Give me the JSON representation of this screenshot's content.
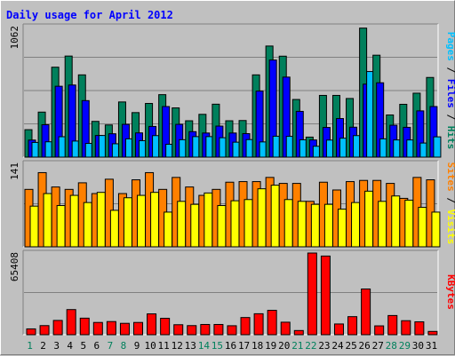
{
  "title": "Daily usage for April 2012",
  "colors": {
    "background": "#c0c0c0",
    "title": "#0000ff",
    "hits": "#00805c",
    "files": "#0000ff",
    "pages": "#00c0ff",
    "visits": "#ffff00",
    "sites": "#ff8000",
    "kbytes": "#ff0000",
    "weekend_day": "#00805c",
    "weekday": "#000000"
  },
  "chart_data": [
    {
      "type": "bar",
      "panel": "hits-files-pages",
      "scale_label": "1062",
      "ylim": [
        0,
        1062
      ],
      "grid": true,
      "legend": [
        "Pages",
        "Files",
        "Hits"
      ],
      "categories": [
        "1",
        "2",
        "3",
        "4",
        "5",
        "6",
        "7",
        "8",
        "9",
        "10",
        "11",
        "12",
        "13",
        "14",
        "15",
        "16",
        "17",
        "18",
        "19",
        "20",
        "21",
        "22",
        "23",
        "24",
        "25",
        "26",
        "27",
        "28",
        "29",
        "30",
        "31"
      ],
      "series": [
        {
          "name": "Hits",
          "values": [
            222,
            364,
            727,
            817,
            665,
            289,
            260,
            446,
            360,
            434,
            505,
            398,
            294,
            346,
            428,
            294,
            296,
            665,
            898,
            816,
            466,
            162,
            499,
            499,
            474,
            1043,
            824,
            341,
            427,
            517,
            644
          ]
        },
        {
          "name": "Files",
          "values": [
            138,
            262,
            573,
            583,
            457,
            175,
            189,
            265,
            196,
            248,
            409,
            265,
            206,
            195,
            251,
            195,
            190,
            534,
            785,
            647,
            370,
            139,
            240,
            312,
            242,
            590,
            601,
            258,
            241,
            374,
            409
          ]
        },
        {
          "name": "Pages",
          "values": [
            119,
            124,
            165,
            130,
            111,
            175,
            108,
            148,
            133,
            174,
            104,
            141,
            166,
            166,
            157,
            121,
            142,
            123,
            169,
            168,
            140,
            88,
            138,
            153,
            174,
            692,
            148,
            139,
            139,
            114,
            164
          ]
        }
      ]
    },
    {
      "type": "bar",
      "panel": "visits-sites",
      "scale_label": "141",
      "ylim": [
        0,
        141
      ],
      "grid": true,
      "legend": [
        "Sites",
        "Visits"
      ],
      "categories": [
        "1",
        "2",
        "3",
        "4",
        "5",
        "6",
        "7",
        "8",
        "9",
        "10",
        "11",
        "12",
        "13",
        "14",
        "15",
        "16",
        "17",
        "18",
        "19",
        "20",
        "21",
        "22",
        "23",
        "24",
        "25",
        "26",
        "27",
        "28",
        "29",
        "30",
        "31"
      ],
      "series": [
        {
          "name": "Visits",
          "values": [
            68,
            89,
            69,
            86,
            74,
            91,
            61,
            82,
            86,
            91,
            58,
            76,
            71,
            90,
            69,
            77,
            79,
            97,
            103,
            79,
            76,
            71,
            71,
            63,
            74,
            93,
            76,
            85,
            78,
            66,
            58
          ]
        },
        {
          "name": "Sites",
          "values": [
            96,
            124,
            100,
            96,
            107,
            89,
            113,
            89,
            112,
            124,
            96,
            116,
            100,
            86,
            96,
            108,
            109,
            109,
            116,
            106,
            106,
            76,
            108,
            95,
            109,
            111,
            111,
            106,
            81,
            116,
            112
          ]
        }
      ]
    },
    {
      "type": "bar",
      "panel": "kbytes",
      "scale_label": "65408",
      "ylim": [
        0,
        65408
      ],
      "grid": true,
      "legend": [
        "KBytes"
      ],
      "categories": [
        "1",
        "2",
        "3",
        "4",
        "5",
        "6",
        "7",
        "8",
        "9",
        "10",
        "11",
        "12",
        "13",
        "14",
        "15",
        "16",
        "17",
        "18",
        "19",
        "20",
        "21",
        "22",
        "23",
        "24",
        "25",
        "26",
        "27",
        "28",
        "29",
        "30",
        "31"
      ],
      "series": [
        {
          "name": "KBytes",
          "values": [
            4600,
            7200,
            11300,
            19900,
            13100,
            9700,
            10400,
            9000,
            9700,
            16500,
            13000,
            7900,
            7200,
            8100,
            8100,
            7100,
            13600,
            16600,
            19300,
            9900,
            3300,
            64700,
            62300,
            8500,
            14300,
            36200,
            7000,
            15200,
            11100,
            10200,
            2600
          ]
        }
      ]
    }
  ],
  "x_labels": [
    {
      "label": "1",
      "weekend": true
    },
    {
      "label": "2",
      "weekend": false
    },
    {
      "label": "3",
      "weekend": false
    },
    {
      "label": "4",
      "weekend": false
    },
    {
      "label": "5",
      "weekend": false
    },
    {
      "label": "6",
      "weekend": false
    },
    {
      "label": "7",
      "weekend": true
    },
    {
      "label": "8",
      "weekend": true
    },
    {
      "label": "9",
      "weekend": false
    },
    {
      "label": "10",
      "weekend": false
    },
    {
      "label": "11",
      "weekend": false
    },
    {
      "label": "12",
      "weekend": false
    },
    {
      "label": "13",
      "weekend": false
    },
    {
      "label": "14",
      "weekend": true
    },
    {
      "label": "15",
      "weekend": true
    },
    {
      "label": "16",
      "weekend": false
    },
    {
      "label": "17",
      "weekend": false
    },
    {
      "label": "18",
      "weekend": false
    },
    {
      "label": "19",
      "weekend": false
    },
    {
      "label": "20",
      "weekend": false
    },
    {
      "label": "21",
      "weekend": true
    },
    {
      "label": "22",
      "weekend": true
    },
    {
      "label": "23",
      "weekend": false
    },
    {
      "label": "24",
      "weekend": false
    },
    {
      "label": "25",
      "weekend": false
    },
    {
      "label": "26",
      "weekend": false
    },
    {
      "label": "27",
      "weekend": false
    },
    {
      "label": "28",
      "weekend": true
    },
    {
      "label": "29",
      "weekend": true
    },
    {
      "label": "30",
      "weekend": false
    },
    {
      "label": "31",
      "weekend": false
    }
  ],
  "right_legends": [
    {
      "panel": "hits-files-pages",
      "parts": [
        {
          "text": "Pages",
          "color": "#00c0ff"
        },
        {
          "text": " / ",
          "color": "#000000"
        },
        {
          "text": "Files",
          "color": "#0000ff"
        },
        {
          "text": " / ",
          "color": "#000000"
        },
        {
          "text": "Hits",
          "color": "#00805c"
        }
      ]
    },
    {
      "panel": "visits-sites",
      "parts": [
        {
          "text": "Sites",
          "color": "#ff8000"
        },
        {
          "text": " / ",
          "color": "#000000"
        },
        {
          "text": "Visits",
          "color": "#ffff00"
        }
      ]
    },
    {
      "panel": "kbytes",
      "parts": [
        {
          "text": "KBytes",
          "color": "#ff0000"
        }
      ]
    }
  ]
}
